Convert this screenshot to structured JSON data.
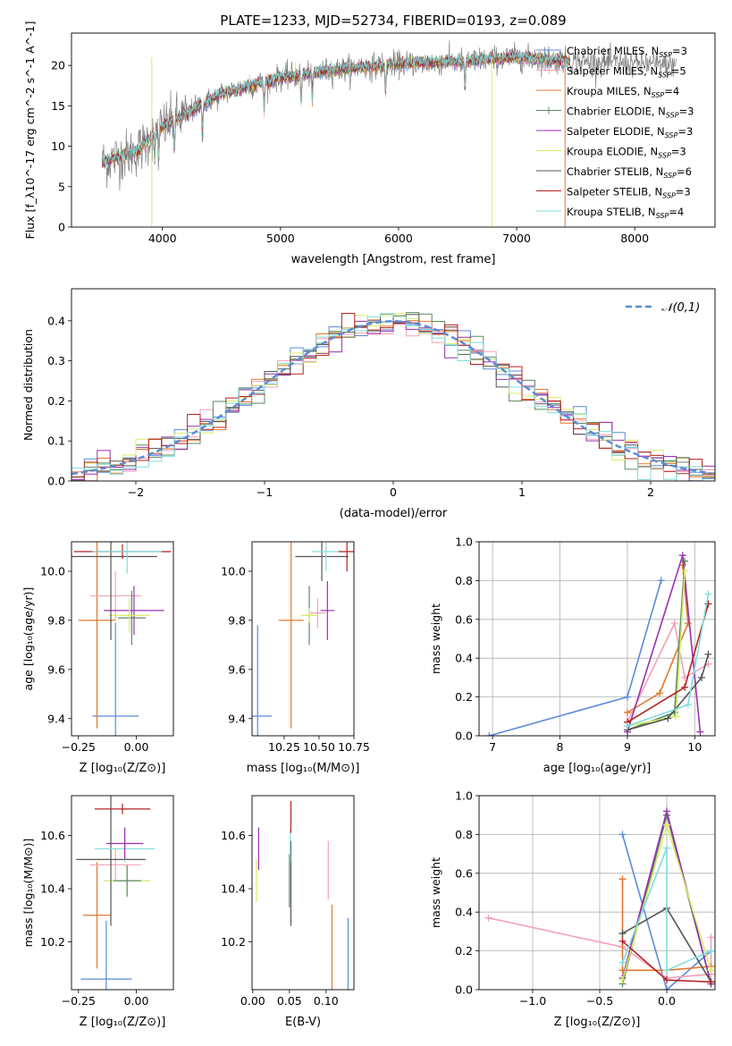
{
  "figure_title": "PLATE=1233, MJD=52734, FIBERID=0193, z=0.089",
  "colors": {
    "c1": "#5b8bd8",
    "c2": "#f4a1b9",
    "c3": "#e3782b",
    "c4": "#5a8a5c",
    "c5": "#9a2fb0",
    "c6": "#d9ec6a",
    "c7": "#555555",
    "c8": "#b22222",
    "c9": "#7fdede",
    "grey": "#808080"
  },
  "chart_data": [
    {
      "type": "line",
      "xlabel": "wavelength [Angstrom, rest frame]",
      "ylabel": "Flux [f_λ10^-17 erg cm^-2 s^-1 A^-1]",
      "xlim": [
        3230,
        8680
      ],
      "ylim": [
        0,
        24
      ],
      "xticks": [
        4000,
        5000,
        6000,
        7000,
        8000
      ],
      "yticks": [
        0,
        5,
        10,
        15,
        20
      ],
      "legend_position": "upper-right",
      "legend": [
        {
          "name": "Chabrier MILES, N_SSP=3",
          "color": "c1",
          "marker": "+"
        },
        {
          "name": "Salpeter MILES, N_SSP=5",
          "color": "c2",
          "marker": "+"
        },
        {
          "name": "Kroupa MILES, N_SSP=4",
          "color": "c3",
          "marker": "-"
        },
        {
          "name": "Chabrier ELODIE, N_SSP=3",
          "color": "c4",
          "marker": "+"
        },
        {
          "name": "Salpeter ELODIE, N_SSP=3",
          "color": "c5",
          "marker": "-"
        },
        {
          "name": "Kroupa ELODIE, N_SSP=3",
          "color": "c6",
          "marker": "-"
        },
        {
          "name": "Chabrier STELIB, N_SSP=6",
          "color": "c7",
          "marker": "-"
        },
        {
          "name": "Salpeter STELIB, N_SSP=3",
          "color": "c8",
          "marker": "-"
        },
        {
          "name": "Kroupa STELIB, N_SSP=4",
          "color": "c9",
          "marker": "-"
        }
      ],
      "continuum_anchor_points": [
        [
          3500,
          8
        ],
        [
          3800,
          9.5
        ],
        [
          3950,
          12
        ],
        [
          4200,
          14
        ],
        [
          4500,
          16.5
        ],
        [
          5000,
          18.5
        ],
        [
          5500,
          19.5
        ],
        [
          6000,
          20.2
        ],
        [
          6500,
          20.5
        ],
        [
          7000,
          21
        ],
        [
          7500,
          20.5
        ],
        [
          8000,
          20.2
        ],
        [
          8350,
          20
        ]
      ]
    },
    {
      "type": "histogram",
      "xlabel": "(data-model)/error",
      "ylabel": "Normed distribution",
      "xlim": [
        -2.5,
        2.5
      ],
      "ylim": [
        0,
        0.48
      ],
      "xticks": [
        -2,
        -1,
        0,
        1,
        2
      ],
      "yticks": [
        0.0,
        0.1,
        0.2,
        0.3,
        0.4
      ],
      "bin_width": 0.1,
      "legend": "𝒩(0,1)",
      "legend_position": "upper-right",
      "gaussian": {
        "mean": 0,
        "sigma": 1,
        "color": "c1"
      }
    },
    {
      "type": "errorbar",
      "xlabel": "Z [log₁₀(Z/Z⊙)]",
      "ylabel": "age [log₁₀(age/yr)]",
      "xlim": [
        -0.28,
        0.16
      ],
      "ylim": [
        9.33,
        10.12
      ],
      "xticks": [
        -0.25,
        0.0
      ],
      "yticks": [
        9.4,
        9.6,
        9.8,
        10.0
      ],
      "points": [
        {
          "c": "c1",
          "x": -0.09,
          "y": 9.41,
          "xerr": 0.1,
          "yerr": 0.38
        },
        {
          "c": "c3",
          "x": -0.17,
          "y": 9.8,
          "xerr": 0.08,
          "yerr": 0.44
        },
        {
          "c": "c2",
          "x": -0.09,
          "y": 9.9,
          "xerr": 0.11,
          "yerr": 0.1
        },
        {
          "c": "c4",
          "x": -0.02,
          "y": 9.81,
          "xerr": 0.06,
          "yerr": 0.11
        },
        {
          "c": "c5",
          "x": -0.01,
          "y": 9.84,
          "xerr": 0.13,
          "yerr": 0.1
        },
        {
          "c": "c6",
          "x": -0.03,
          "y": 9.82,
          "xerr": 0.09,
          "yerr": 0.07
        },
        {
          "c": "c7",
          "x": -0.11,
          "y": 10.06,
          "xerr": 0.2,
          "yerr": 0.34
        },
        {
          "c": "c8",
          "x": -0.06,
          "y": 10.08,
          "xerr": 0.21,
          "yerr": 0.03
        },
        {
          "c": "c9",
          "x": -0.04,
          "y": 10.08,
          "xerr": 0.15,
          "yerr": 0.09
        }
      ]
    },
    {
      "type": "errorbar",
      "xlabel": "mass [log₁₀(M/M⊙)]",
      "ylabel": "",
      "xlim": [
        10.02,
        10.75
      ],
      "ylim": [
        9.33,
        10.12
      ],
      "xticks": [
        10.25,
        10.5,
        10.75
      ],
      "yticks": [
        9.4,
        9.6,
        9.8,
        10.0
      ],
      "points": [
        {
          "c": "c1",
          "x": 10.06,
          "y": 9.41,
          "xerr": 0.1,
          "yerr": 0.37
        },
        {
          "c": "c3",
          "x": 10.3,
          "y": 9.8,
          "xerr": 0.09,
          "yerr": 0.44
        },
        {
          "c": "c4",
          "x": 10.43,
          "y": 9.82,
          "xerr": 0.03,
          "yerr": 0.12
        },
        {
          "c": "c2",
          "x": 10.49,
          "y": 9.83,
          "xerr": 0.06,
          "yerr": 0.06
        },
        {
          "c": "c6",
          "x": 10.43,
          "y": 9.82,
          "xerr": 0.06,
          "yerr": 0.03
        },
        {
          "c": "c5",
          "x": 10.56,
          "y": 9.84,
          "xerr": 0.05,
          "yerr": 0.12
        },
        {
          "c": "c7",
          "x": 10.52,
          "y": 10.06,
          "xerr": 0.19,
          "yerr": 0.1
        },
        {
          "c": "c9",
          "x": 10.55,
          "y": 10.08,
          "xerr": 0.1,
          "yerr": 0.08
        },
        {
          "c": "c8",
          "x": 10.7,
          "y": 10.08,
          "xerr": 0.06,
          "yerr": 0.08
        }
      ]
    },
    {
      "type": "line",
      "xlabel": "age [log₁₀(age/yr)]",
      "ylabel": "mass weight",
      "xlim": [
        6.8,
        10.3
      ],
      "ylim": [
        0,
        1
      ],
      "xticks": [
        7,
        8,
        9,
        10
      ],
      "yticks": [
        0.0,
        0.2,
        0.4,
        0.6,
        0.8,
        1.0
      ],
      "grid": true,
      "series": [
        {
          "c": "c1",
          "points": [
            [
              6.95,
              0.0
            ],
            [
              9.0,
              0.2
            ],
            [
              9.5,
              0.8
            ]
          ]
        },
        {
          "c": "c2",
          "points": [
            [
              9.0,
              0.07
            ],
            [
              9.7,
              0.58
            ],
            [
              9.85,
              0.3
            ],
            [
              10.2,
              0.37
            ]
          ]
        },
        {
          "c": "c3",
          "points": [
            [
              9.0,
              0.12
            ],
            [
              9.48,
              0.22
            ],
            [
              9.9,
              0.58
            ],
            [
              9.82,
              0.88
            ]
          ]
        },
        {
          "c": "c4",
          "points": [
            [
              9.0,
              0.03
            ],
            [
              9.7,
              0.12
            ],
            [
              9.85,
              0.9
            ]
          ]
        },
        {
          "c": "c5",
          "points": [
            [
              9.0,
              0.02
            ],
            [
              9.82,
              0.93
            ],
            [
              10.08,
              0.02
            ]
          ]
        },
        {
          "c": "c6",
          "points": [
            [
              9.0,
              0.05
            ],
            [
              9.72,
              0.1
            ],
            [
              9.85,
              0.85
            ]
          ]
        },
        {
          "c": "c7",
          "points": [
            [
              9.0,
              0.03
            ],
            [
              9.6,
              0.09
            ],
            [
              10.1,
              0.3
            ],
            [
              10.2,
              0.42
            ]
          ]
        },
        {
          "c": "c8",
          "points": [
            [
              9.0,
              0.07
            ],
            [
              9.85,
              0.25
            ],
            [
              10.2,
              0.68
            ]
          ]
        },
        {
          "c": "c9",
          "points": [
            [
              9.0,
              0.05
            ],
            [
              9.9,
              0.16
            ],
            [
              10.2,
              0.73
            ]
          ]
        }
      ]
    },
    {
      "type": "errorbar",
      "xlabel": "Z [log₁₀(Z/Z⊙)]",
      "ylabel": "mass [log₁₀(M/M⊙)]",
      "xlim": [
        -0.28,
        0.16
      ],
      "ylim": [
        10.02,
        10.75
      ],
      "xticks": [
        -0.25,
        0.0
      ],
      "yticks": [
        10.2,
        10.4,
        10.6
      ],
      "points": [
        {
          "c": "c1",
          "x": -0.13,
          "y": 10.06,
          "xerr": 0.11,
          "yerr": 0.22
        },
        {
          "c": "c3",
          "x": -0.17,
          "y": 10.3,
          "xerr": 0.06,
          "yerr": 0.2
        },
        {
          "c": "c6",
          "x": -0.04,
          "y": 10.43,
          "xerr": 0.1,
          "yerr": 0.06
        },
        {
          "c": "c4",
          "x": -0.04,
          "y": 10.43,
          "xerr": 0.06,
          "yerr": 0.06
        },
        {
          "c": "c2",
          "x": -0.09,
          "y": 10.49,
          "xerr": 0.11,
          "yerr": 0.06
        },
        {
          "c": "c7",
          "x": -0.11,
          "y": 10.51,
          "xerr": 0.15,
          "yerr": 0.25
        },
        {
          "c": "c9",
          "x": -0.05,
          "y": 10.55,
          "xerr": 0.13,
          "yerr": 0.05
        },
        {
          "c": "c5",
          "x": -0.05,
          "y": 10.57,
          "xerr": 0.08,
          "yerr": 0.06
        },
        {
          "c": "c8",
          "x": -0.06,
          "y": 10.7,
          "xerr": 0.12,
          "yerr": 0.02
        }
      ]
    },
    {
      "type": "errorbar",
      "xlabel": "E(B-V)",
      "ylabel": "",
      "xlim": [
        -0.001,
        0.138
      ],
      "ylim": [
        10.02,
        10.75
      ],
      "xticks": [
        0.0,
        0.05,
        0.1
      ],
      "yticks": [
        10.2,
        10.4,
        10.6
      ],
      "points": [
        {
          "c": "c6",
          "x": 0.005,
          "y": 10.43,
          "xerr": 0.0,
          "yerr": 0.08
        },
        {
          "c": "c5",
          "x": 0.008,
          "y": 10.55,
          "xerr": 0.0,
          "yerr": 0.08
        },
        {
          "c": "c7",
          "x": 0.052,
          "y": 10.42,
          "xerr": 0.0,
          "yerr": 0.16
        },
        {
          "c": "c4",
          "x": 0.05,
          "y": 10.43,
          "xerr": 0.0,
          "yerr": 0.1
        },
        {
          "c": "c9",
          "x": 0.051,
          "y": 10.56,
          "xerr": 0.0,
          "yerr": 0.06
        },
        {
          "c": "c8",
          "x": 0.052,
          "y": 10.67,
          "xerr": 0.0,
          "yerr": 0.06
        },
        {
          "c": "c2",
          "x": 0.103,
          "y": 10.47,
          "xerr": 0.0,
          "yerr": 0.11
        },
        {
          "c": "c3",
          "x": 0.108,
          "y": 10.18,
          "xerr": 0.0,
          "yerr": 0.16
        },
        {
          "c": "c1",
          "x": 0.13,
          "y": 10.13,
          "xerr": 0.0,
          "yerr": 0.16
        }
      ]
    },
    {
      "type": "line",
      "xlabel": "Z [log₁₀(Z/Z⊙)]",
      "ylabel": "mass weight",
      "xlim": [
        -1.4,
        0.36
      ],
      "ylim": [
        0,
        1
      ],
      "xticks": [
        -1.0,
        -0.5,
        0.0
      ],
      "yticks": [
        0.0,
        0.2,
        0.4,
        0.6,
        0.8,
        1.0
      ],
      "grid": true,
      "series": [
        {
          "c": "c1",
          "points": [
            [
              -0.33,
              0.8
            ],
            [
              0.0,
              0.0
            ],
            [
              0.33,
              0.2
            ]
          ]
        },
        {
          "c": "c2",
          "points": [
            [
              -1.33,
              0.37
            ],
            [
              -0.33,
              0.22
            ],
            [
              0.0,
              0.06
            ],
            [
              0.33,
              0.08
            ],
            [
              0.33,
              0.27
            ]
          ]
        },
        {
          "c": "c3",
          "points": [
            [
              -0.33,
              0.57
            ],
            [
              -0.33,
              0.1
            ],
            [
              0.0,
              0.1
            ],
            [
              0.33,
              0.12
            ]
          ]
        },
        {
          "c": "c4",
          "points": [
            [
              -0.33,
              0.03
            ],
            [
              0.0,
              0.9
            ],
            [
              0.33,
              0.03
            ]
          ]
        },
        {
          "c": "c5",
          "points": [
            [
              -0.33,
              0.06
            ],
            [
              0.0,
              0.92
            ],
            [
              0.33,
              0.03
            ]
          ]
        },
        {
          "c": "c6",
          "points": [
            [
              -0.33,
              0.05
            ],
            [
              0.0,
              0.85
            ],
            [
              0.33,
              0.1
            ]
          ]
        },
        {
          "c": "c7",
          "points": [
            [
              -0.33,
              0.29
            ],
            [
              0.0,
              0.42
            ],
            [
              0.33,
              0.04
            ]
          ]
        },
        {
          "c": "c8",
          "points": [
            [
              -0.33,
              0.25
            ],
            [
              0.0,
              0.05
            ],
            [
              0.33,
              0.04
            ]
          ]
        },
        {
          "c": "c9",
          "points": [
            [
              -0.33,
              0.14
            ],
            [
              0.0,
              0.73
            ],
            [
              0.0,
              0.1
            ],
            [
              0.33,
              0.2
            ]
          ]
        }
      ]
    }
  ]
}
